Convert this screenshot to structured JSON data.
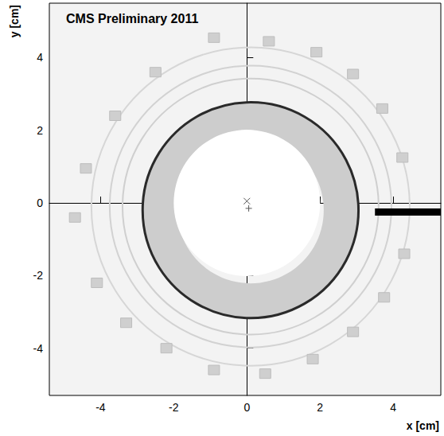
{
  "chart_data": {
    "type": "vertex_map",
    "title": "CMS Preliminary 2011",
    "x_label": "x [cm]",
    "y_label": "y [cm]",
    "xlim": [
      -5.4,
      5.3
    ],
    "ylim": [
      -5.3,
      5.5
    ],
    "xticks": [
      -4,
      -2,
      0,
      2,
      4
    ],
    "yticks": [
      -4,
      -2,
      0,
      2,
      4
    ],
    "grid": false,
    "color": "#f3f3f3",
    "annuli": [
      {
        "x": 0.1,
        "y": -0.2,
        "r_inner": 2.0,
        "r_outer": 2.95,
        "color": "#cdcdcd"
      },
      {
        "x": 0.0,
        "y": 0.0,
        "r_inner": 0.0,
        "r_outer": 2.0,
        "color": "#ffffff"
      }
    ],
    "rings": [
      {
        "x": 0.1,
        "y": -0.2,
        "r": 2.95,
        "color": "#2a2a2a"
      },
      {
        "x": 0.1,
        "y": -0.1,
        "r": 3.5,
        "color": "#cfcfcf"
      },
      {
        "x": 0.1,
        "y": -0.1,
        "r": 3.85,
        "color": "#d2d2d2"
      },
      {
        "x": 0.1,
        "y": -0.1,
        "r": 4.35,
        "color": "#d6d6d6"
      }
    ],
    "modules": [
      {
        "x": -0.9,
        "y": 4.55
      },
      {
        "x": 0.6,
        "y": 4.45
      },
      {
        "x": 1.9,
        "y": 4.15
      },
      {
        "x": 2.9,
        "y": 3.55
      },
      {
        "x": 3.7,
        "y": 2.6
      },
      {
        "x": 4.25,
        "y": 1.25
      },
      {
        "x": 4.3,
        "y": -1.4
      },
      {
        "x": 3.75,
        "y": -2.6
      },
      {
        "x": 2.9,
        "y": -3.55
      },
      {
        "x": 1.8,
        "y": -4.3
      },
      {
        "x": 0.5,
        "y": -4.7
      },
      {
        "x": -0.9,
        "y": -4.6
      },
      {
        "x": -2.2,
        "y": -4.0
      },
      {
        "x": -3.3,
        "y": -3.3
      },
      {
        "x": -4.1,
        "y": -2.2
      },
      {
        "x": -4.7,
        "y": -0.4
      },
      {
        "x": -4.4,
        "y": 0.95
      },
      {
        "x": -3.6,
        "y": 2.4
      },
      {
        "x": -2.5,
        "y": 3.6
      }
    ],
    "markers": [
      {
        "x": 0.0,
        "y": 0.05,
        "marker": "cross"
      },
      {
        "x": 0.05,
        "y": -0.15,
        "marker": "plus"
      }
    ],
    "segments": [
      {
        "x": [
          3.5,
          5.3
        ],
        "y": [
          -0.25,
          -0.25
        ],
        "color": "#000000"
      }
    ]
  }
}
